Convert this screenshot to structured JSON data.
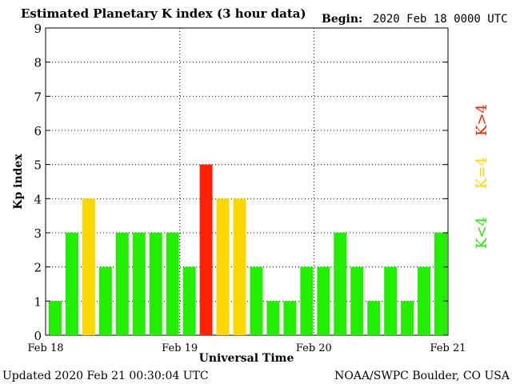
{
  "chart_data": {
    "type": "bar",
    "title": "Estimated Planetary K index (3 hour data)",
    "begin_label": "Begin:",
    "begin_value": "2020 Feb 18 0000 UTC",
    "ylabel": "Kp index",
    "xlabel": "Universal Time",
    "ylim": [
      0,
      9
    ],
    "yticks": [
      "0",
      "1",
      "2",
      "3",
      "4",
      "5",
      "6",
      "7",
      "8",
      "9"
    ],
    "xticks": [
      "Feb 18",
      "Feb 19",
      "Feb 20",
      "Feb 21"
    ],
    "grid": true,
    "values": [
      1,
      3,
      4,
      2,
      3,
      3,
      3,
      3,
      2,
      5,
      4,
      4,
      2,
      1,
      1,
      2,
      2,
      3,
      2,
      1,
      2,
      1,
      2,
      3
    ],
    "colors": {
      "low": "#22ee00",
      "mid": "#ffd700",
      "high": "#ff2200"
    },
    "legend": {
      "low": "K<4",
      "mid": "K=4",
      "high": "K>4"
    }
  },
  "footer": {
    "updated": "Updated 2020 Feb 21 00:30:04 UTC",
    "source": "NOAA/SWPC Boulder, CO USA"
  }
}
